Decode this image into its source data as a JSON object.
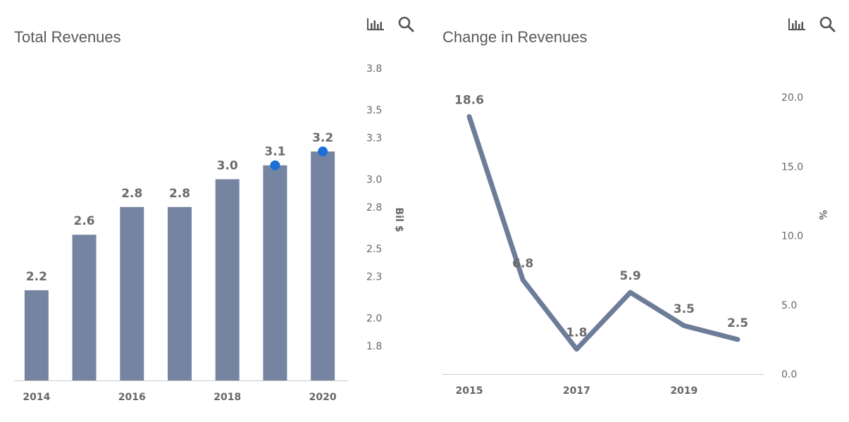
{
  "colors": {
    "bar": "#7585a1",
    "line": "#6d7d99",
    "marker": "#1a6fd8",
    "axis_text": "#666666",
    "label_text": "#6b6b6b",
    "title": "#595959",
    "icon": "#555555"
  },
  "icons": {
    "chart_toggle": "bar-chart-icon",
    "search": "search-icon"
  },
  "chart_data": [
    {
      "type": "bar",
      "title": "Total Revenues",
      "ylabel": "Bil $",
      "categories": [
        "2014",
        "2015",
        "2016",
        "2017",
        "2018",
        "2019",
        "2020"
      ],
      "x_tick_labels": [
        "2014",
        "",
        "2016",
        "",
        "2018",
        "",
        "2020"
      ],
      "values": [
        2.2,
        2.6,
        2.8,
        2.8,
        3.0,
        3.1,
        3.2
      ],
      "data_labels": [
        "2.2",
        "2.6",
        "2.8",
        "2.8",
        "3.0",
        "3.1",
        "3.2"
      ],
      "forecast_markers": [
        "2019",
        "2020"
      ],
      "y_ticks": [
        "1.8",
        "2.0",
        "2.3",
        "2.5",
        "2.8",
        "3.0",
        "3.3",
        "3.5",
        "3.8"
      ],
      "ylim": [
        1.55,
        3.85
      ],
      "y_axis_position": "right",
      "grid": false,
      "legend": "none"
    },
    {
      "type": "line",
      "title": "Change in Revenues",
      "ylabel": "%",
      "categories": [
        "2015",
        "2016",
        "2017",
        "2018",
        "2019",
        "2020"
      ],
      "x_tick_labels": [
        "2015",
        "",
        "2017",
        "",
        "2019",
        ""
      ],
      "values": [
        18.6,
        6.8,
        1.8,
        5.9,
        3.5,
        2.5
      ],
      "data_labels": [
        "18.6",
        "6.8",
        "1.8",
        "5.9",
        "3.5",
        "2.5"
      ],
      "y_ticks": [
        "0.0",
        "5.0",
        "10.0",
        "15.0",
        "20.0"
      ],
      "ylim": [
        0,
        20
      ],
      "y_axis_position": "right",
      "grid": false,
      "legend": "none"
    }
  ]
}
